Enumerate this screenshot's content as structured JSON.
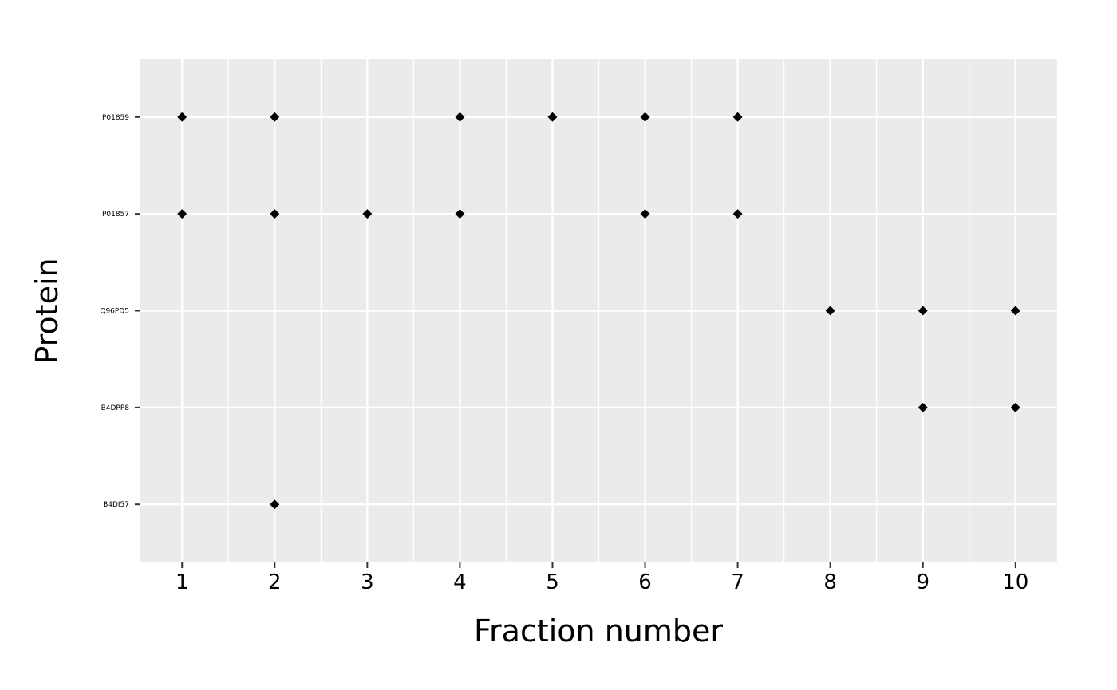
{
  "chart_data": {
    "type": "scatter",
    "title": "",
    "xlabel": "Fraction number",
    "ylabel": "Protein",
    "x_categories": [
      "1",
      "2",
      "3",
      "4",
      "5",
      "6",
      "7",
      "8",
      "9",
      "10"
    ],
    "y_categories": [
      "B4DI57",
      "B4DPP8",
      "Q96PD5",
      "P01857",
      "P01859"
    ],
    "xlim": [
      0.55,
      10.45
    ],
    "ylim": [
      0.4,
      5.6
    ],
    "grid": true,
    "legend": "none",
    "marker": "diamond",
    "colors": {
      "panel_background": "#EBEBEB",
      "grid_major": "#FFFFFF",
      "point": "#000000"
    },
    "points": [
      {
        "x": 1,
        "protein": "P01859"
      },
      {
        "x": 2,
        "protein": "P01859"
      },
      {
        "x": 4,
        "protein": "P01859"
      },
      {
        "x": 5,
        "protein": "P01859"
      },
      {
        "x": 6,
        "protein": "P01859"
      },
      {
        "x": 7,
        "protein": "P01859"
      },
      {
        "x": 1,
        "protein": "P01857"
      },
      {
        "x": 2,
        "protein": "P01857"
      },
      {
        "x": 3,
        "protein": "P01857"
      },
      {
        "x": 4,
        "protein": "P01857"
      },
      {
        "x": 6,
        "protein": "P01857"
      },
      {
        "x": 7,
        "protein": "P01857"
      },
      {
        "x": 8,
        "protein": "Q96PD5"
      },
      {
        "x": 9,
        "protein": "Q96PD5"
      },
      {
        "x": 10,
        "protein": "Q96PD5"
      },
      {
        "x": 9,
        "protein": "B4DPP8"
      },
      {
        "x": 10,
        "protein": "B4DPP8"
      },
      {
        "x": 2,
        "protein": "B4DI57"
      }
    ]
  }
}
